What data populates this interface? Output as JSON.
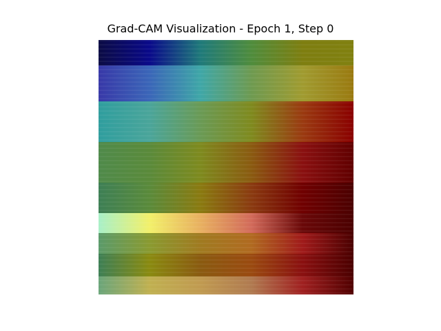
{
  "chart_data": {
    "type": "heatmap",
    "title": "Grad-CAM Visualization - Epoch 1, Step 0",
    "xlabel": "",
    "ylabel": "",
    "axes_visible": false,
    "colormap": "jet overlay",
    "grid": false,
    "rows": [
      {
        "stops": [
          "#0b0b44",
          "#0a0a8a",
          "#1f7a7a",
          "#4f8c3c",
          "#7e7e10",
          "#808010"
        ]
      },
      {
        "stops": [
          "#3838a8",
          "#3a66b8",
          "#3fa7a7",
          "#6e9a50",
          "#a09b30",
          "#9a7a10"
        ]
      },
      {
        "stops": [
          "#2f9e9e",
          "#4aa59a",
          "#6a9a55",
          "#7f8a1e",
          "#9a3a10",
          "#8a0000"
        ]
      },
      {
        "stops": [
          "#4f8a4a",
          "#5a8a3a",
          "#7e8a1e",
          "#8a5a10",
          "#8a1010",
          "#600000"
        ]
      },
      {
        "stops": [
          "#3d7f55",
          "#5a8a3a",
          "#8a7a10",
          "#8a3a10",
          "#700000",
          "#4a0000"
        ]
      },
      {
        "stops": [
          "#a8f0c8",
          "#f2f06a",
          "#e8b060",
          "#d26a5a",
          "#6a0808",
          "#4a0000"
        ]
      },
      {
        "stops": [
          "#5a9a6a",
          "#8a9a30",
          "#a07a20",
          "#b06a20",
          "#a01a1a",
          "#4a0000"
        ]
      },
      {
        "stops": [
          "#3d7f55",
          "#8a8a10",
          "#8a5a10",
          "#9a4a10",
          "#8a1010",
          "#4a0000"
        ]
      },
      {
        "stops": [
          "#6aa57a",
          "#c0b050",
          "#c09a50",
          "#b07a50",
          "#a02020",
          "#500000"
        ]
      }
    ]
  }
}
